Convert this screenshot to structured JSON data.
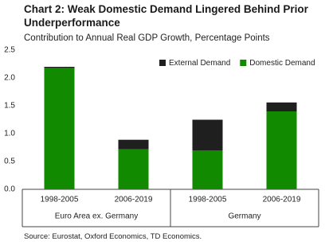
{
  "chart_data": {
    "type": "stacked_bar",
    "title": "Chart 2: Weak Domestic Demand Lingered Behind Prior Underperformance",
    "subtitle": "Contribution to Annual Real GDP Growth, Percentage Points",
    "source": "Source: Eurostat, Oxford Economics, TD Economics.",
    "categories": [
      "1998-2005",
      "2006-2019",
      "1998-2005",
      "2006-2019"
    ],
    "groups": [
      "Euro Area ex. Germany",
      "Germany"
    ],
    "series": [
      {
        "name": "External Demand",
        "color": "#1f1f1f",
        "values": [
          0.02,
          0.17,
          0.55,
          0.16
        ]
      },
      {
        "name": "Domestic Demand",
        "color": "#128a00",
        "values": [
          2.18,
          0.72,
          0.7,
          1.4
        ]
      }
    ],
    "ylim": [
      0,
      2.5
    ],
    "yticks": [
      {
        "value": 0,
        "label": "0.0"
      },
      0.5,
      {
        "value": 1,
        "label": "1.0"
      },
      1.5,
      {
        "value": 2,
        "label": "2.0"
      },
      2.5
    ],
    "grid": false
  }
}
